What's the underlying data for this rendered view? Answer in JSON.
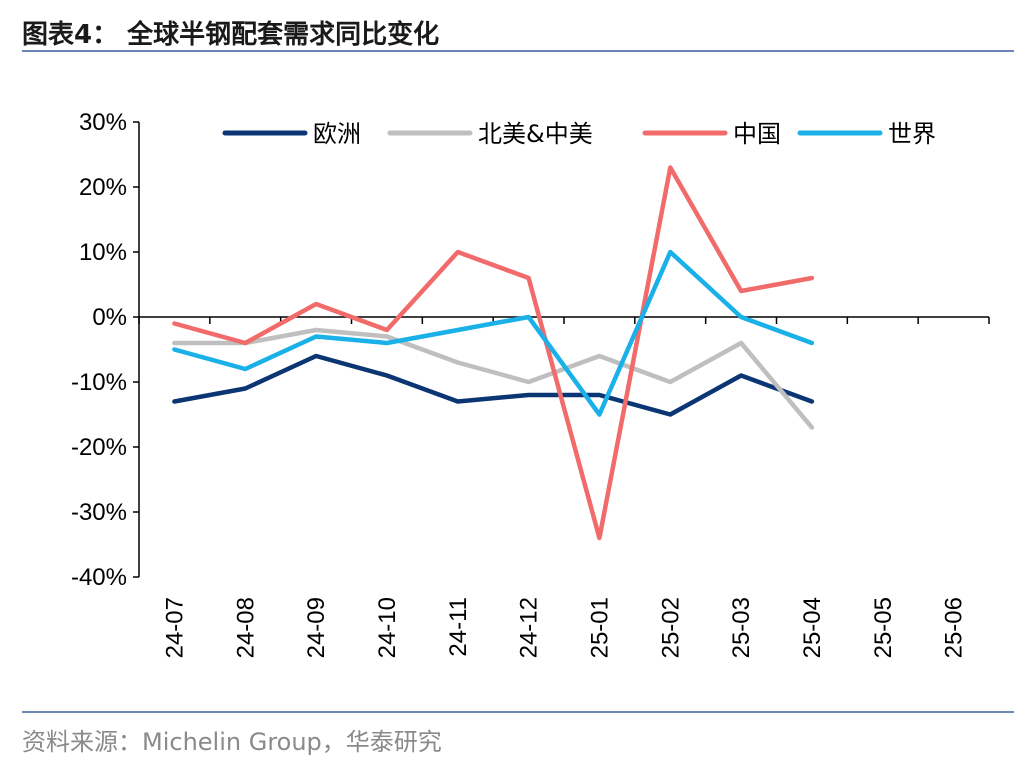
{
  "header": {
    "title": "图表4：  全球半钢配套需求同比变化"
  },
  "footer": {
    "source": "资料来源：Michelin Group，华泰研究"
  },
  "chart_data": {
    "type": "line",
    "categories": [
      "24-07",
      "24-08",
      "24-09",
      "24-10",
      "24-11",
      "24-12",
      "25-01",
      "25-02",
      "25-03",
      "25-04",
      "25-05",
      "25-06"
    ],
    "series": [
      {
        "name": "欧洲",
        "color": "#0b3573",
        "values": [
          -13,
          -11,
          -6,
          -9,
          -13,
          -12,
          -12,
          -15,
          -9,
          -13,
          null,
          null
        ]
      },
      {
        "name": "北美&中美",
        "color": "#bfbfbf",
        "values": [
          -4,
          -4,
          -2,
          -3,
          -7,
          -10,
          -6,
          -10,
          -4,
          -17,
          null,
          null
        ]
      },
      {
        "name": "中国",
        "color": "#f26b6b",
        "values": [
          -1,
          -4,
          2,
          -2,
          10,
          6,
          -34,
          23,
          4,
          6,
          null,
          null
        ]
      },
      {
        "name": "世界",
        "color": "#1ab0e8",
        "values": [
          -5,
          -8,
          -3,
          -4,
          -2,
          0,
          -15,
          10,
          0,
          -4,
          null,
          null
        ]
      }
    ],
    "ylim": [
      -40,
      30
    ],
    "yticks": [
      30,
      20,
      10,
      0,
      -10,
      -20,
      -30,
      -40
    ],
    "ytick_labels": [
      "30%",
      "20%",
      "10%",
      "0%",
      "-10%",
      "-20%",
      "-30%",
      "-40%"
    ],
    "xlabel": "",
    "ylabel": "",
    "grid": false,
    "legend": "top"
  }
}
